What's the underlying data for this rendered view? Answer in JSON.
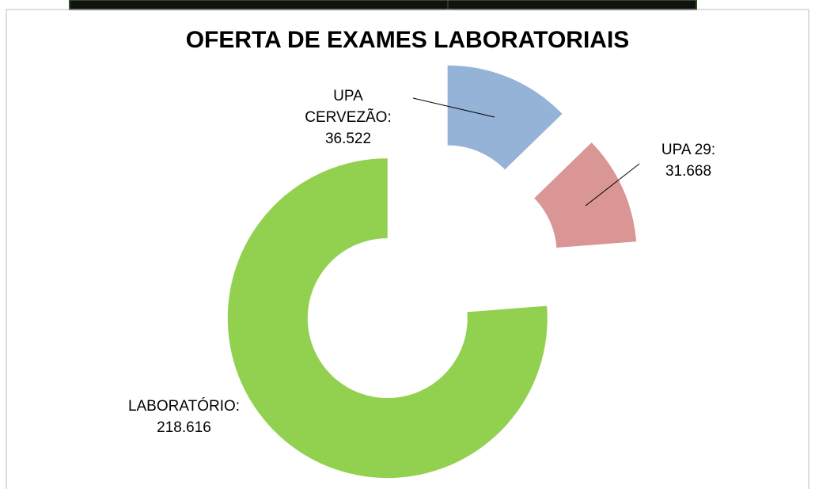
{
  "chart_data": {
    "type": "donut",
    "title": "OFERTA DE EXAMES LABORATORIAIS",
    "categories": [
      "UPA CERVEZÃO:",
      "UPA 29:",
      "LABORATÓRIO:"
    ],
    "values": [
      36522,
      31668,
      218616
    ],
    "value_labels": [
      "36.522",
      "31.668",
      "218.616"
    ],
    "colors": [
      "#95b3d7",
      "#d99694",
      "#92d050"
    ]
  }
}
